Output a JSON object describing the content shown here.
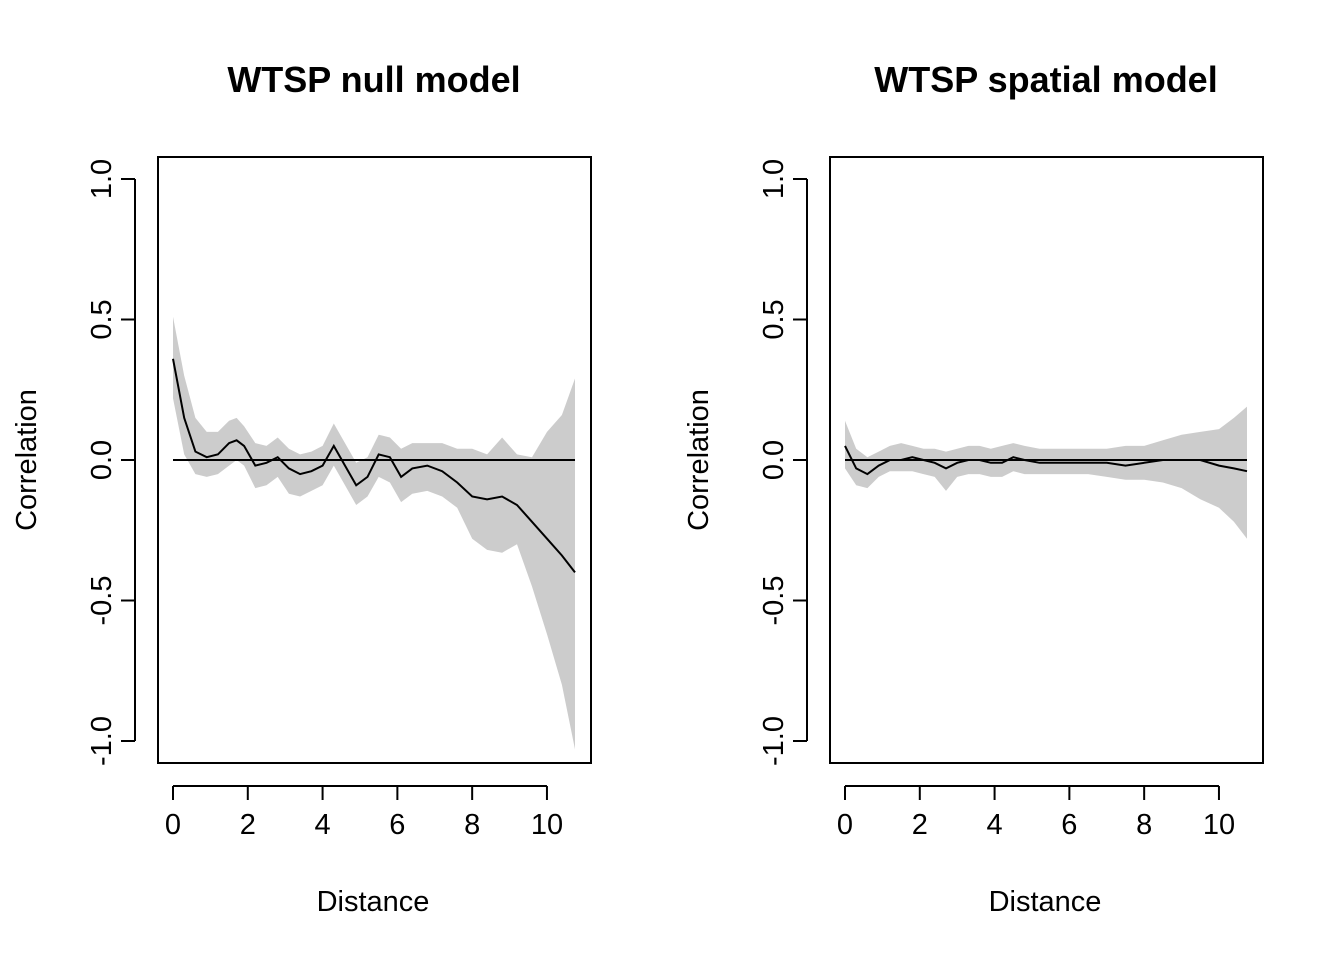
{
  "chart_data": [
    {
      "type": "line",
      "title": "WTSP null model",
      "xlabel": "Distance",
      "ylabel": "Correlation",
      "xlim": [
        0,
        10.8
      ],
      "ylim": [
        -1.05,
        1.05
      ],
      "xticks": [
        "0",
        "2",
        "4",
        "6",
        "8",
        "10"
      ],
      "yticks": [
        "-1.0",
        "-0.5",
        "0.0",
        "0.5",
        "1.0"
      ],
      "reference_line": 0,
      "grid": false,
      "series": [
        {
          "x": [
            0,
            0.3,
            0.6,
            0.9,
            1.2,
            1.5,
            1.7,
            1.9,
            2.2,
            2.5,
            2.8,
            3.1,
            3.4,
            3.7,
            4.0,
            4.3,
            4.6,
            4.9,
            5.2,
            5.5,
            5.8,
            6.1,
            6.4,
            6.8,
            7.2,
            7.6,
            8.0,
            8.4,
            8.8,
            9.2,
            9.6,
            10.0,
            10.4,
            10.75
          ],
          "y": [
            0.36,
            0.15,
            0.03,
            0.01,
            0.02,
            0.06,
            0.07,
            0.05,
            -0.02,
            -0.01,
            0.01,
            -0.03,
            -0.05,
            -0.04,
            -0.02,
            0.05,
            -0.02,
            -0.09,
            -0.06,
            0.02,
            0.01,
            -0.06,
            -0.03,
            -0.02,
            -0.04,
            -0.08,
            -0.13,
            -0.14,
            -0.13,
            -0.16,
            -0.22,
            -0.28,
            -0.34,
            -0.4
          ],
          "lower": [
            0.22,
            0.02,
            -0.05,
            -0.06,
            -0.05,
            -0.02,
            0.0,
            -0.02,
            -0.1,
            -0.09,
            -0.06,
            -0.12,
            -0.13,
            -0.11,
            -0.09,
            -0.02,
            -0.09,
            -0.16,
            -0.13,
            -0.06,
            -0.08,
            -0.15,
            -0.12,
            -0.11,
            -0.13,
            -0.17,
            -0.28,
            -0.32,
            -0.33,
            -0.3,
            -0.45,
            -0.62,
            -0.8,
            -1.03
          ],
          "upper": [
            0.51,
            0.3,
            0.15,
            0.1,
            0.1,
            0.14,
            0.15,
            0.12,
            0.06,
            0.05,
            0.08,
            0.04,
            0.02,
            0.03,
            0.05,
            0.13,
            0.06,
            -0.01,
            0.01,
            0.09,
            0.08,
            0.04,
            0.06,
            0.06,
            0.06,
            0.04,
            0.04,
            0.02,
            0.08,
            0.02,
            0.01,
            0.1,
            0.16,
            0.29
          ]
        }
      ]
    },
    {
      "type": "line",
      "title": "WTSP spatial model",
      "xlabel": "Distance",
      "ylabel": "Correlation",
      "xlim": [
        0,
        10.8
      ],
      "ylim": [
        -1.05,
        1.05
      ],
      "xticks": [
        "0",
        "2",
        "4",
        "6",
        "8",
        "10"
      ],
      "yticks": [
        "-1.0",
        "-0.5",
        "0.0",
        "0.5",
        "1.0"
      ],
      "reference_line": 0,
      "grid": false,
      "series": [
        {
          "x": [
            0,
            0.3,
            0.6,
            0.9,
            1.2,
            1.5,
            1.8,
            2.1,
            2.4,
            2.7,
            3.0,
            3.3,
            3.6,
            3.9,
            4.2,
            4.5,
            4.8,
            5.2,
            5.6,
            6.0,
            6.5,
            7.0,
            7.5,
            8.0,
            8.5,
            9.0,
            9.5,
            10.0,
            10.4,
            10.75
          ],
          "y": [
            0.05,
            -0.03,
            -0.05,
            -0.02,
            0.0,
            0.0,
            0.01,
            0.0,
            -0.01,
            -0.03,
            -0.01,
            0.0,
            0.0,
            -0.01,
            -0.01,
            0.01,
            0.0,
            -0.01,
            -0.01,
            -0.01,
            -0.01,
            -0.01,
            -0.02,
            -0.01,
            0.0,
            0.0,
            0.0,
            -0.02,
            -0.03,
            -0.04
          ],
          "lower": [
            -0.03,
            -0.09,
            -0.1,
            -0.06,
            -0.04,
            -0.04,
            -0.04,
            -0.05,
            -0.06,
            -0.11,
            -0.06,
            -0.05,
            -0.05,
            -0.06,
            -0.06,
            -0.04,
            -0.05,
            -0.05,
            -0.05,
            -0.05,
            -0.05,
            -0.06,
            -0.07,
            -0.07,
            -0.08,
            -0.1,
            -0.14,
            -0.17,
            -0.22,
            -0.28
          ],
          "upper": [
            0.14,
            0.04,
            0.01,
            0.03,
            0.05,
            0.06,
            0.05,
            0.04,
            0.04,
            0.03,
            0.04,
            0.05,
            0.05,
            0.04,
            0.05,
            0.06,
            0.05,
            0.04,
            0.04,
            0.04,
            0.04,
            0.04,
            0.05,
            0.05,
            0.07,
            0.09,
            0.1,
            0.11,
            0.15,
            0.19
          ]
        }
      ]
    }
  ]
}
